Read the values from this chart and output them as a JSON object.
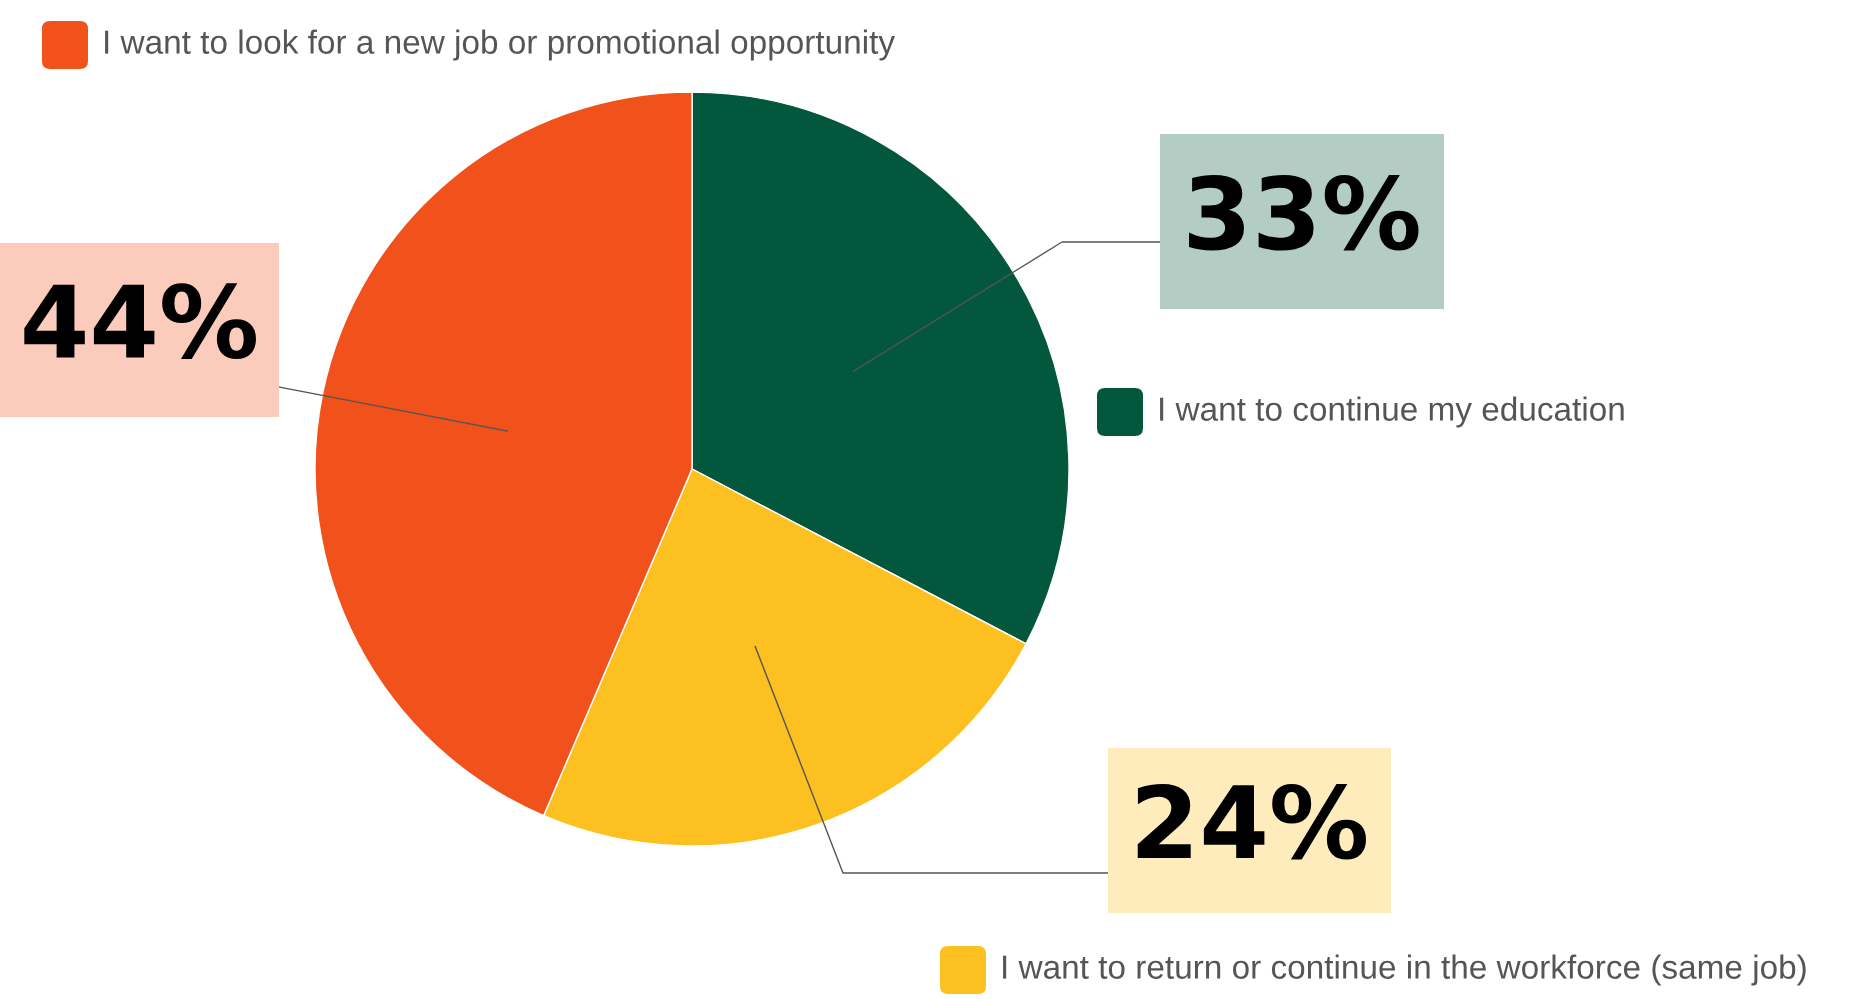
{
  "chart_data": {
    "type": "pie",
    "categories": [
      "I want to continue my education",
      "I want to return or continue in the workforce (same job)",
      "I want to look for a new job or promotional opportunity"
    ],
    "values": [
      33,
      24,
      44
    ],
    "colors": [
      "#03573c",
      "#fcc020",
      "#f1511b"
    ],
    "value_labels": [
      "33%",
      "24%",
      "44%"
    ],
    "legend": "right"
  }
}
